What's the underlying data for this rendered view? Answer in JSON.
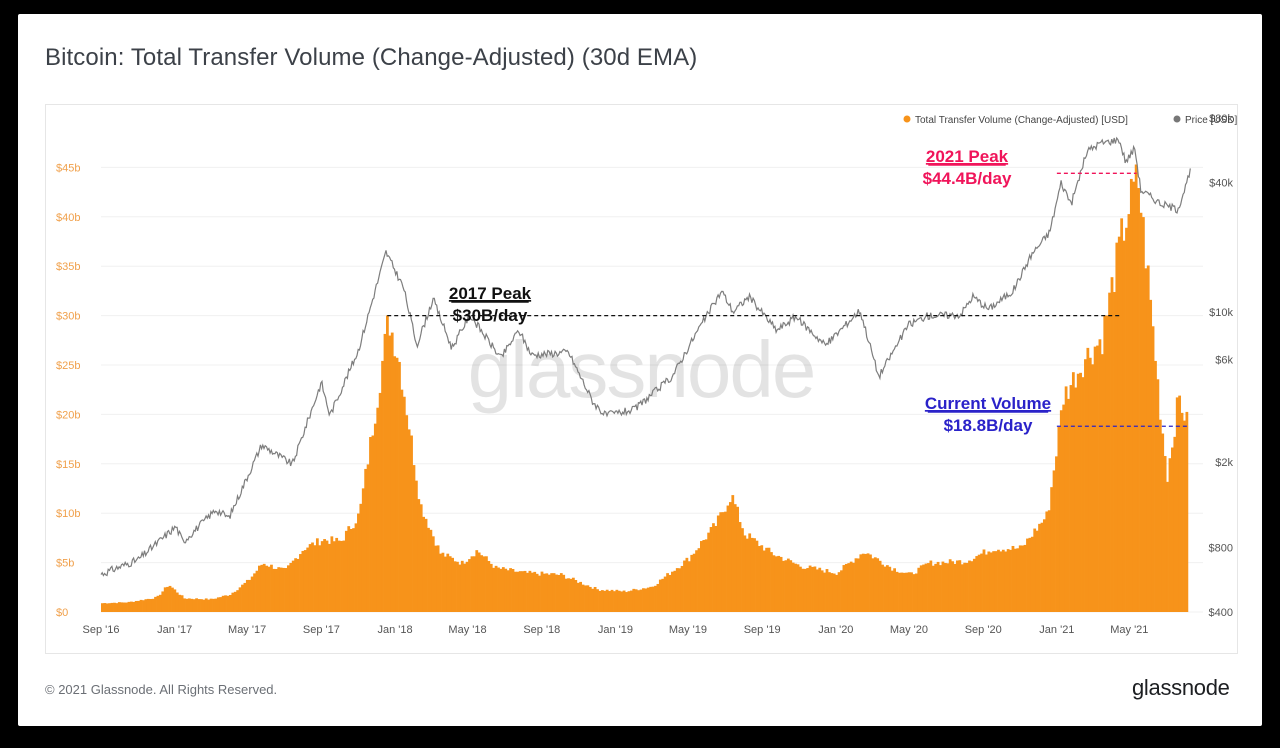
{
  "title": "Bitcoin: Total Transfer Volume (Change-Adjusted) (30d EMA)",
  "footer": {
    "copyright": "© 2021 Glassnode. All Rights Reserved.",
    "logo": "glassnode"
  },
  "watermark": "glassnode",
  "chart_data": {
    "type": "bar",
    "legend_position": "top-right",
    "grid": true,
    "x_ticks": [
      "Sep '16",
      "Jan '17",
      "May '17",
      "Sep '17",
      "Jan '18",
      "May '18",
      "Sep '18",
      "Jan '19",
      "May '19",
      "Sep '19",
      "Jan '20",
      "May '20",
      "Sep '20",
      "Jan '21",
      "May '21"
    ],
    "y_left_ticks": [
      "$0",
      "$5b",
      "$10b",
      "$15b",
      "$20b",
      "$25b",
      "$30b",
      "$35b",
      "$40b",
      "$45b"
    ],
    "y_right_ticks": [
      "$400",
      "$800",
      "$2k",
      "$6k",
      "$10k",
      "$40k",
      "$80k"
    ],
    "y_left_range": [
      0,
      50
    ],
    "y_right_scale": "log",
    "y_right_range": [
      400,
      80000
    ],
    "series": [
      {
        "name": "Total Transfer Volume (Change-Adjusted) [USD]",
        "type": "area",
        "axis": "left",
        "unit": "USD billions",
        "color": "#f7931a",
        "points": [
          [
            "2016-09-01",
            0.9
          ],
          [
            "2016-10-15",
            1.0
          ],
          [
            "2016-12-01",
            1.5
          ],
          [
            "2016-12-20",
            2.8
          ],
          [
            "2017-01-15",
            1.4
          ],
          [
            "2017-03-01",
            1.3
          ],
          [
            "2017-04-01",
            1.8
          ],
          [
            "2017-05-01",
            3.2
          ],
          [
            "2017-05-25",
            5.0
          ],
          [
            "2017-07-01",
            4.2
          ],
          [
            "2017-08-01",
            6.5
          ],
          [
            "2017-09-01",
            7.4
          ],
          [
            "2017-10-01",
            7.2
          ],
          [
            "2017-11-01",
            10.0
          ],
          [
            "2017-12-01",
            22.0
          ],
          [
            "2017-12-19",
            30.0
          ],
          [
            "2018-01-05",
            26.0
          ],
          [
            "2018-01-20",
            20.0
          ],
          [
            "2018-02-10",
            11.0
          ],
          [
            "2018-03-15",
            6.0
          ],
          [
            "2018-04-20",
            5.0
          ],
          [
            "2018-05-15",
            6.3
          ],
          [
            "2018-06-15",
            4.5
          ],
          [
            "2018-08-01",
            4.0
          ],
          [
            "2018-10-01",
            3.8
          ],
          [
            "2018-12-01",
            2.3
          ],
          [
            "2019-01-15",
            2.1
          ],
          [
            "2019-03-01",
            2.6
          ],
          [
            "2019-05-01",
            5.5
          ],
          [
            "2019-06-15",
            9.0
          ],
          [
            "2019-07-10",
            12.0
          ],
          [
            "2019-08-01",
            8.0
          ],
          [
            "2019-09-15",
            6.0
          ],
          [
            "2019-11-01",
            4.7
          ],
          [
            "2020-01-01",
            4.0
          ],
          [
            "2020-02-15",
            6.2
          ],
          [
            "2020-04-01",
            4.5
          ],
          [
            "2020-05-01",
            3.8
          ],
          [
            "2020-06-01",
            5.0
          ],
          [
            "2020-08-01",
            5.2
          ],
          [
            "2020-09-15",
            6.5
          ],
          [
            "2020-11-01",
            6.5
          ],
          [
            "2020-12-15",
            10.0
          ],
          [
            "2021-01-10",
            22.0
          ],
          [
            "2021-02-15",
            26.0
          ],
          [
            "2021-03-15",
            28.0
          ],
          [
            "2021-04-15",
            38.0
          ],
          [
            "2021-05-01",
            42.0
          ],
          [
            "2021-05-13",
            44.4
          ],
          [
            "2021-06-01",
            33.0
          ],
          [
            "2021-06-20",
            20.0
          ],
          [
            "2021-07-01",
            14.0
          ],
          [
            "2021-07-20",
            22.0
          ],
          [
            "2021-08-05",
            18.8
          ]
        ]
      },
      {
        "name": "Price [USD]",
        "type": "line",
        "axis": "right",
        "unit": "USD",
        "color": "#8a8a8a",
        "points": [
          [
            "2016-09-01",
            600
          ],
          [
            "2016-11-01",
            700
          ],
          [
            "2017-01-03",
            1000
          ],
          [
            "2017-01-15",
            850
          ],
          [
            "2017-03-10",
            1200
          ],
          [
            "2017-04-01",
            1100
          ],
          [
            "2017-05-25",
            2400
          ],
          [
            "2017-07-15",
            1950
          ],
          [
            "2017-09-01",
            4700
          ],
          [
            "2017-09-15",
            3300
          ],
          [
            "2017-11-01",
            6600
          ],
          [
            "2017-12-17",
            19000
          ],
          [
            "2018-01-15",
            13000
          ],
          [
            "2018-02-06",
            7000
          ],
          [
            "2018-03-05",
            11500
          ],
          [
            "2018-04-05",
            6800
          ],
          [
            "2018-05-05",
            9700
          ],
          [
            "2018-06-25",
            6100
          ],
          [
            "2018-07-25",
            8200
          ],
          [
            "2018-08-15",
            6300
          ],
          [
            "2018-10-15",
            6500
          ],
          [
            "2018-11-25",
            3800
          ],
          [
            "2018-12-15",
            3300
          ],
          [
            "2019-02-01",
            3500
          ],
          [
            "2019-04-05",
            5000
          ],
          [
            "2019-05-15",
            8000
          ],
          [
            "2019-06-26",
            12500
          ],
          [
            "2019-07-15",
            10000
          ],
          [
            "2019-08-10",
            11800
          ],
          [
            "2019-09-25",
            8200
          ],
          [
            "2019-10-26",
            9500
          ],
          [
            "2019-12-15",
            7000
          ],
          [
            "2020-02-10",
            10200
          ],
          [
            "2020-03-12",
            5000
          ],
          [
            "2020-04-30",
            8700
          ],
          [
            "2020-06-01",
            9600
          ],
          [
            "2020-07-25",
            9700
          ],
          [
            "2020-08-15",
            11800
          ],
          [
            "2020-09-10",
            10300
          ],
          [
            "2020-10-20",
            12500
          ],
          [
            "2020-11-20",
            18500
          ],
          [
            "2020-12-20",
            23500
          ],
          [
            "2021-01-08",
            40000
          ],
          [
            "2021-01-25",
            32000
          ],
          [
            "2021-02-20",
            56000
          ],
          [
            "2021-03-13",
            61000
          ],
          [
            "2021-04-14",
            63500
          ],
          [
            "2021-04-25",
            50000
          ],
          [
            "2021-05-10",
            58000
          ],
          [
            "2021-05-20",
            37000
          ],
          [
            "2021-06-22",
            32000
          ],
          [
            "2021-07-20",
            30000
          ],
          [
            "2021-08-05",
            40500
          ],
          [
            "2021-08-10",
            45000
          ]
        ]
      }
    ],
    "annotations": [
      {
        "title": "2021 Peak",
        "value_label": "$44.4B/day",
        "value": 44.4,
        "from": "2021-01-01",
        "to": "2021-05-13",
        "color": "#f0145a"
      },
      {
        "title": "2017 Peak",
        "value_label": "$30B/day",
        "value": 30.0,
        "from": "2017-12-19",
        "to": "2021-04-15",
        "color": "#111111"
      },
      {
        "title": "Current Volume",
        "value_label": "$18.8B/day",
        "value": 18.8,
        "from": "2021-01-01",
        "to": "2021-08-05",
        "color": "#2a22c9"
      }
    ]
  }
}
